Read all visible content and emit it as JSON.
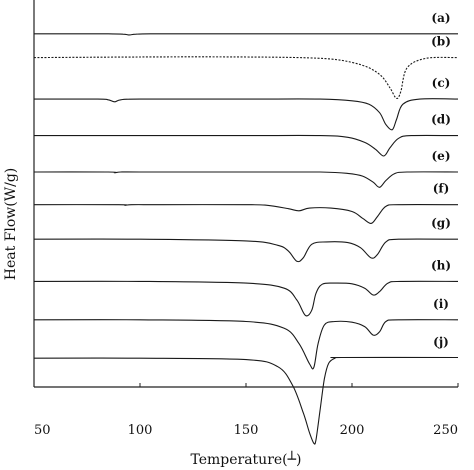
{
  "chart_data": {
    "type": "line",
    "xlabel": "Temperature(┴)",
    "ylabel": "Heat Flow(W/g)",
    "xlim": [
      50,
      250
    ],
    "xticks": [
      "50",
      "100",
      "150",
      "200",
      "250"
    ],
    "grid": false,
    "legend": "none",
    "colors": {
      "line": "#1a1a1a",
      "axis": "#222222",
      "background": "#ffffff"
    },
    "series": [
      {
        "name": "(a)",
        "baseline": 0.1,
        "x": [
          50,
          70,
          85,
          92,
          95,
          98,
          105,
          130,
          160,
          200,
          250
        ],
        "y": [
          0,
          0,
          0,
          -0.01,
          -0.03,
          -0.01,
          0,
          0,
          0,
          0,
          0
        ]
      },
      {
        "name": "(b)",
        "baseline": 0.72,
        "x": [
          50,
          100,
          150,
          175,
          190,
          200,
          208,
          214,
          218,
          221,
          223,
          226,
          235,
          250
        ],
        "y": [
          0,
          0.02,
          0.02,
          0,
          -0.04,
          -0.14,
          -0.3,
          -0.55,
          -0.9,
          -1.2,
          -1.0,
          -0.3,
          -0.02,
          0
        ]
      },
      {
        "name": "(c)",
        "baseline": 1.8,
        "x": [
          50,
          80,
          85,
          88,
          91,
          100,
          150,
          185,
          200,
          208,
          213,
          216,
          219,
          221,
          224,
          232,
          250
        ],
        "y": [
          0,
          0,
          -0.02,
          -0.08,
          -0.02,
          0,
          0,
          0,
          -0.05,
          -0.15,
          -0.4,
          -0.75,
          -0.9,
          -0.6,
          -0.15,
          0,
          0
        ]
      },
      {
        "name": "(d)",
        "baseline": 2.75,
        "x": [
          50,
          100,
          150,
          185,
          198,
          206,
          211,
          215,
          218,
          222,
          228,
          250
        ],
        "y": [
          0,
          0,
          0,
          0,
          -0.05,
          -0.2,
          -0.4,
          -0.6,
          -0.35,
          -0.08,
          0,
          0
        ]
      },
      {
        "name": "(e)",
        "baseline": 3.7,
        "x": [
          50,
          85,
          88,
          91,
          100,
          150,
          185,
          198,
          205,
          210,
          213,
          216,
          220,
          226,
          250
        ],
        "y": [
          0,
          0,
          -0.02,
          0,
          0,
          0,
          0,
          -0.04,
          -0.12,
          -0.3,
          -0.45,
          -0.25,
          -0.05,
          0,
          0
        ]
      },
      {
        "name": "(f)",
        "baseline": 4.55,
        "x": [
          50,
          90,
          93,
          96,
          110,
          150,
          160,
          170,
          175,
          180,
          190,
          200,
          205,
          209,
          212,
          216,
          222,
          250
        ],
        "y": [
          0,
          0,
          -0.02,
          0,
          0,
          0,
          -0.02,
          -0.12,
          -0.18,
          -0.1,
          -0.1,
          -0.2,
          -0.4,
          -0.55,
          -0.35,
          -0.05,
          0,
          0
        ]
      },
      {
        "name": "(g)",
        "baseline": 5.45,
        "x": [
          50,
          100,
          150,
          165,
          170,
          174,
          177,
          181,
          188,
          198,
          204,
          209,
          212,
          216,
          222,
          250
        ],
        "y": [
          0,
          0,
          -0.05,
          -0.18,
          -0.35,
          -0.65,
          -0.55,
          -0.15,
          -0.08,
          -0.1,
          -0.25,
          -0.55,
          -0.45,
          -0.08,
          0,
          0
        ]
      },
      {
        "name": "(h)",
        "baseline": 6.55,
        "x": [
          50,
          100,
          150,
          168,
          174,
          178,
          181,
          183,
          186,
          192,
          200,
          206,
          210,
          213,
          217,
          223,
          250
        ],
        "y": [
          0,
          0,
          -0.05,
          -0.2,
          -0.55,
          -1.0,
          -0.85,
          -0.35,
          -0.08,
          -0.05,
          -0.07,
          -0.2,
          -0.4,
          -0.3,
          -0.05,
          0,
          0
        ]
      },
      {
        "name": "(i)",
        "baseline": 7.55,
        "x": [
          50,
          100,
          150,
          168,
          175,
          180,
          182,
          184,
          187,
          192,
          200,
          206,
          210,
          213,
          216,
          222,
          250
        ],
        "y": [
          0,
          0,
          -0.05,
          -0.25,
          -0.7,
          -1.3,
          -1.4,
          -0.7,
          -0.15,
          -0.05,
          -0.07,
          -0.2,
          -0.45,
          -0.35,
          -0.05,
          0,
          0
        ]
      },
      {
        "name": "(j)",
        "baseline": 8.55,
        "x": [
          50,
          100,
          150,
          165,
          172,
          177,
          180,
          182,
          183,
          185,
          187,
          189,
          192,
          195,
          250
        ],
        "y": [
          0,
          0,
          -0.04,
          -0.25,
          -0.8,
          -1.6,
          -2.2,
          -2.5,
          -2.4,
          -1.5,
          -0.6,
          -0.15,
          0,
          0.02,
          0.02
        ]
      }
    ]
  }
}
